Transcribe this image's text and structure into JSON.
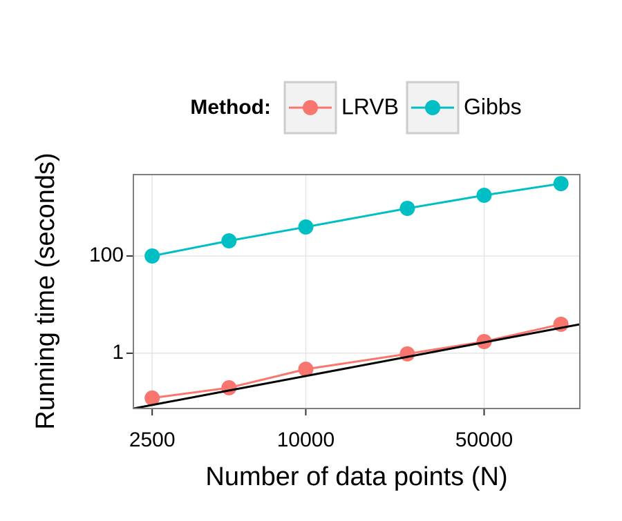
{
  "chart_data": {
    "type": "line",
    "x_label": "Number of data points (N)",
    "y_label": "Running time (seconds)",
    "legend_title": "Method:",
    "legend_position": "top",
    "x_log": true,
    "y_log": true,
    "grid": true,
    "x": [
      2500,
      5000,
      10000,
      25000,
      50000,
      100000
    ],
    "series": [
      {
        "name": "LRVB",
        "color": "#F8766D",
        "values": [
          0.12,
          0.195,
          0.47,
          0.97,
          1.74,
          3.94
        ]
      },
      {
        "name": "Gibbs",
        "color": "#00BFC4",
        "values": [
          100,
          205,
          395,
          953,
          1770,
          3080
        ]
      }
    ],
    "reference_line": {
      "color": "#000000",
      "x": [
        2110,
        118600
      ],
      "values": [
        0.073,
        3.94
      ]
    },
    "xlim": [
      2110,
      118600
    ],
    "ylim": [
      0.073,
      4720
    ],
    "xticks": [
      2500,
      10000,
      50000
    ],
    "yticks": [
      1,
      100
    ]
  }
}
